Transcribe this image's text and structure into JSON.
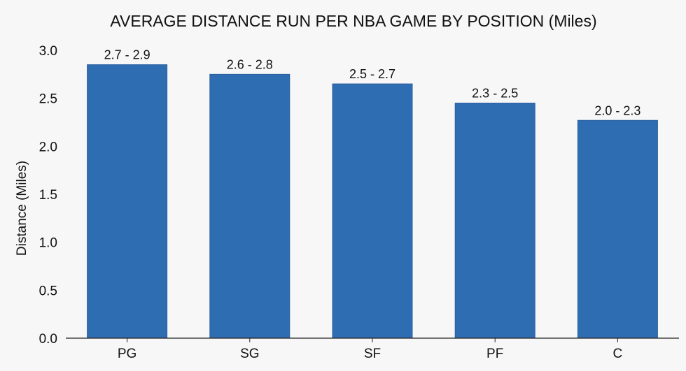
{
  "chart_data": {
    "type": "bar",
    "title": "AVERAGE DISTANCE RUN PER NBA GAME BY POSITION (Miles)",
    "xlabel": "",
    "ylabel": "Distance (Miles)",
    "categories": [
      "PG",
      "SG",
      "SF",
      "PF",
      "C"
    ],
    "values": [
      2.85,
      2.75,
      2.65,
      2.45,
      2.27
    ],
    "data_labels": [
      "2.7 - 2.9",
      "2.6 - 2.8",
      "2.5 - 2.7",
      "2.3 - 2.5",
      "2.0 - 2.3"
    ],
    "ylim": [
      0,
      3.0
    ],
    "yticks": [
      0.0,
      0.5,
      1.0,
      1.5,
      2.0,
      2.5,
      3.0
    ],
    "ytick_labels": [
      "0.0",
      "0.5",
      "1.0",
      "1.5",
      "2.0",
      "2.5",
      "3.0"
    ],
    "grid": false,
    "bar_color": "#2f6db3",
    "bar_border_color": "#2a5f9e"
  }
}
